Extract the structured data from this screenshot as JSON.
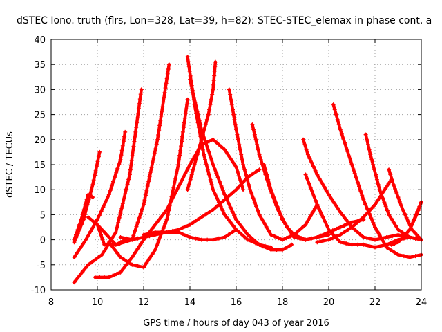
{
  "chart_data": {
    "type": "scatter",
    "title": "dSTEC Iono. truth (flrs, Lon=328, Lat=39, h=82): STEC-STEC_elemax in phase cont. a",
    "xlabel": "GPS time / hours of day 043 of year 2016",
    "ylabel": "dSTEC  / TECUs",
    "xlim": [
      8,
      24
    ],
    "ylim": [
      -10,
      40
    ],
    "x_ticks": [
      "8",
      "10",
      "12",
      "14",
      "16",
      "18",
      "20",
      "22",
      "24"
    ],
    "y_ticks": [
      "-10",
      "-5",
      "0",
      "5",
      "10",
      "15",
      "20",
      "25",
      "30",
      "35",
      "40"
    ],
    "grid": true,
    "marker": "+",
    "color": "#ff0000",
    "series": [
      {
        "x": [
          9.0,
          9.3,
          9.6,
          9.8
        ],
        "y": [
          0,
          4,
          9,
          8.5
        ]
      },
      {
        "x": [
          9.0,
          9.4,
          9.8,
          10.1
        ],
        "y": [
          -0.5,
          4,
          11,
          17.5
        ]
      },
      {
        "x": [
          9.0,
          9.5,
          10.0,
          10.5,
          11.0,
          11.2
        ],
        "y": [
          -3.5,
          0,
          4,
          9,
          16,
          21.5
        ]
      },
      {
        "x": [
          9.0,
          9.6,
          10.2,
          10.8,
          11.4,
          11.9
        ],
        "y": [
          -8.5,
          -5,
          -3,
          1.5,
          13,
          30
        ]
      },
      {
        "x": [
          9.6,
          10.0,
          10.3,
          10.8,
          11.2
        ],
        "y": [
          4.5,
          3,
          -1,
          -1,
          0
        ]
      },
      {
        "x": [
          10.0,
          10.8,
          11.5,
          12.0,
          12.6,
          13.1
        ],
        "y": [
          3,
          -1,
          0,
          7,
          20,
          35
        ]
      },
      {
        "x": [
          10.5,
          11.0,
          11.5,
          12.0,
          12.5,
          13.0,
          13.5,
          13.9
        ],
        "y": [
          -0.5,
          -3.5,
          -5,
          -5.5,
          -2,
          4,
          15,
          28
        ]
      },
      {
        "x": [
          9.9,
          10.5,
          11.0,
          11.5,
          12.0,
          12.5,
          13.0,
          13.5,
          14.0,
          14.5,
          15.0,
          15.5,
          16.0,
          16.3
        ],
        "y": [
          -7.5,
          -7.5,
          -6.5,
          -3.5,
          0,
          3,
          6,
          10.5,
          15,
          19,
          20,
          18,
          14.5,
          10
        ]
      },
      {
        "x": [
          11.0,
          11.5,
          12.0,
          12.5,
          13.0,
          13.5,
          14.0,
          14.5,
          15.0,
          15.5,
          16.0,
          16.5,
          17.0
        ],
        "y": [
          0.5,
          0,
          0.5,
          1,
          1.5,
          2,
          3,
          4.5,
          6,
          8,
          10,
          12.5,
          14
        ]
      },
      {
        "x": [
          12.0,
          12.5,
          13.0,
          13.5,
          14.0,
          14.5,
          15.0,
          15.5,
          16.0
        ],
        "y": [
          1,
          1.5,
          1.5,
          1.5,
          0.5,
          0,
          0,
          0.5,
          2
        ]
      },
      {
        "x": [
          13.9,
          14.2,
          14.6,
          15.0,
          15.5,
          16.0,
          16.5,
          17.0,
          17.5
        ],
        "y": [
          36.5,
          27,
          17,
          10,
          5,
          2,
          0,
          -1,
          -1.5
        ]
      },
      {
        "x": [
          14.0,
          14.5,
          15.0,
          15.5,
          16.0,
          16.5,
          17.0,
          17.5,
          18.0,
          18.4
        ],
        "y": [
          32,
          22,
          15,
          9,
          4,
          1,
          -1,
          -2,
          -2,
          -1
        ]
      },
      {
        "x": [
          15.1,
          15.0,
          14.8,
          14.5,
          14.2,
          13.9
        ],
        "y": [
          35.5,
          30,
          25,
          20,
          15,
          10
        ]
      },
      {
        "x": [
          15.7,
          16.0,
          16.3,
          16.6,
          17.0,
          17.5,
          18.0,
          18.5,
          19.0,
          19.5
        ],
        "y": [
          30,
          22,
          15,
          10,
          5,
          1,
          0,
          1,
          3,
          7
        ]
      },
      {
        "x": [
          16.7,
          17.0,
          17.4,
          17.8,
          18.2,
          18.6,
          19.0,
          19.5,
          20.0
        ],
        "y": [
          23,
          17,
          11,
          6,
          2.5,
          0.5,
          0,
          0.5,
          1
        ]
      },
      {
        "x": [
          17.2,
          17.5,
          18.0,
          18.5,
          19.0
        ],
        "y": [
          15,
          10,
          4,
          0.5,
          0
        ]
      },
      {
        "x": [
          18.9,
          19.1,
          19.5,
          20.0,
          20.5,
          21.0,
          21.5,
          22.0,
          22.5,
          23.0,
          23.5,
          24.0
        ],
        "y": [
          20,
          17,
          13,
          9,
          5.5,
          2.5,
          0.5,
          0,
          0.5,
          1,
          0.5,
          0
        ]
      },
      {
        "x": [
          19.0,
          19.5,
          20.0,
          20.5,
          21.0,
          21.5,
          22.0,
          22.5,
          23.0,
          23.5,
          24.0
        ],
        "y": [
          13,
          7,
          2,
          -0.5,
          -1,
          -1,
          -1.5,
          -1,
          0,
          0.5,
          0
        ]
      },
      {
        "x": [
          20.2,
          20.5,
          21.0,
          21.5,
          22.0,
          22.5,
          23.0,
          23.5,
          24.0
        ],
        "y": [
          27,
          22,
          15,
          8,
          2.5,
          -1.5,
          -3,
          -3.5,
          -3
        ]
      },
      {
        "x": [
          21.6,
          21.8,
          22.2,
          22.6,
          23.0,
          23.5,
          24.0
        ],
        "y": [
          21,
          17,
          10,
          5,
          2,
          0.5,
          0
        ]
      },
      {
        "x": [
          22.6,
          22.8,
          23.2,
          23.6,
          24.0
        ],
        "y": [
          14,
          11,
          6,
          2,
          0
        ]
      },
      {
        "x": [
          18.5,
          19.0,
          19.5,
          20.0,
          20.5,
          21.0,
          21.5
        ],
        "y": [
          1,
          0,
          0.5,
          1.5,
          2.5,
          3.5,
          4
        ]
      },
      {
        "x": [
          19.5,
          20.0,
          20.5,
          21.0,
          21.5,
          22.0,
          22.7
        ],
        "y": [
          -0.5,
          0,
          1,
          2.5,
          4.5,
          7,
          12
        ]
      },
      {
        "x": [
          22.7,
          23.0,
          23.5,
          24.0
        ],
        "y": [
          -1,
          -0.5,
          2,
          7.5
        ]
      },
      {
        "x": [
          23.5,
          23.8,
          24.0
        ],
        "y": [
          2,
          5,
          7.5
        ]
      }
    ]
  }
}
